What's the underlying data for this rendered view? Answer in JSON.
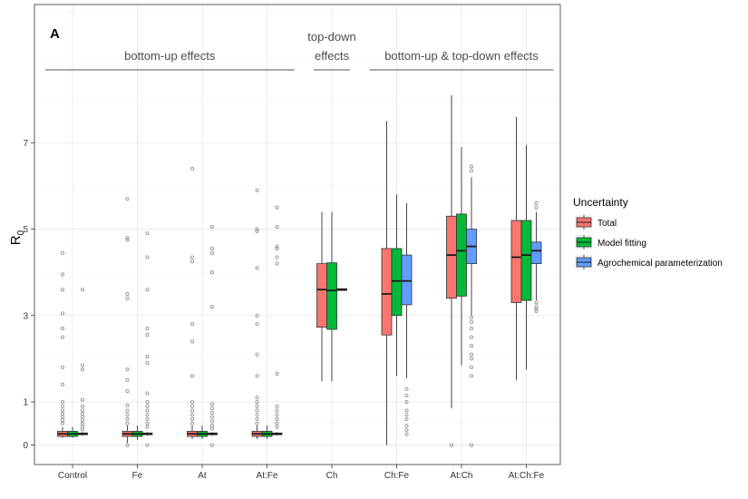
{
  "chart_data": {
    "type": "box",
    "panel_label": "A",
    "ylabel": "R",
    "ylabel_subscript": "0",
    "xlabel": "",
    "ylim": [
      -0.45,
      10.2
    ],
    "y_ticks": [
      0,
      1,
      3,
      5,
      7
    ],
    "categories": [
      "Control",
      "Fe",
      "At",
      "At:Fe",
      "Ch",
      "Ch:Fe",
      "At:Ch",
      "At:Ch:Fe"
    ],
    "grid": true,
    "legend": {
      "title": "Uncertainty",
      "position": "right",
      "entries": [
        "Total",
        "Model fitting",
        "Agrochemical parameterization"
      ]
    },
    "series_colors": {
      "Total": "#f8766d",
      "Model fitting": "#00ba38",
      "Agrochemical parameterization": "#619cff"
    },
    "annotations": [
      {
        "lines": [
          "bottom-up effects"
        ],
        "category_span": [
          "Control",
          "At:Fe"
        ]
      },
      {
        "lines": [
          "top-down",
          "effects"
        ],
        "category_span": [
          "Ch",
          "Ch"
        ]
      },
      {
        "lines": [
          "bottom-up & top-down effects"
        ],
        "category_span": [
          "Ch:Fe",
          "At:Ch:Fe"
        ]
      }
    ],
    "series": [
      {
        "name": "Total",
        "boxes": [
          {
            "category": "Control",
            "q1": 0.2,
            "median": 0.26,
            "q3": 0.32,
            "whisker_low": 0.17,
            "whisker_high": 0.42,
            "outliers": [
              4.45,
              3.95,
              3.6,
              3.05,
              2.7,
              2.5,
              1.8,
              1.4,
              1.0,
              0.9,
              0.8,
              0.72,
              0.65,
              0.58,
              0.5
            ]
          },
          {
            "category": "Fe",
            "q1": 0.2,
            "median": 0.26,
            "q3": 0.32,
            "whisker_low": 0.05,
            "whisker_high": 0.45,
            "outliers": [
              5.7,
              4.8,
              4.75,
              3.5,
              3.4,
              1.75,
              1.5,
              1.25,
              0.92,
              0.8,
              0.7,
              0.6,
              0.5,
              0.0
            ]
          },
          {
            "category": "At",
            "q1": 0.2,
            "median": 0.26,
            "q3": 0.32,
            "whisker_low": 0.14,
            "whisker_high": 0.45,
            "outliers": [
              6.4,
              4.35,
              4.25,
              2.8,
              2.4,
              1.6,
              1.0,
              0.9,
              0.8,
              0.7,
              0.6,
              0.5
            ]
          },
          {
            "category": "At:Fe",
            "q1": 0.2,
            "median": 0.26,
            "q3": 0.32,
            "whisker_low": 0.14,
            "whisker_high": 0.45,
            "outliers": [
              5.9,
              5.0,
              4.95,
              4.1,
              3.0,
              2.8,
              2.1,
              1.6,
              1.1,
              1.0,
              0.9,
              0.8,
              0.7,
              0.6,
              0.5
            ]
          },
          {
            "category": "Ch",
            "q1": 2.73,
            "median": 3.6,
            "q3": 4.2,
            "whisker_low": 1.48,
            "whisker_high": 5.4,
            "outliers": []
          },
          {
            "category": "Ch:Fe",
            "q1": 2.55,
            "median": 3.5,
            "q3": 4.55,
            "whisker_low": 0.0,
            "whisker_high": 7.5,
            "outliers": []
          },
          {
            "category": "At:Ch",
            "q1": 3.4,
            "median": 4.4,
            "q3": 5.3,
            "whisker_low": 0.85,
            "whisker_high": 8.1,
            "outliers": [
              0.0
            ]
          },
          {
            "category": "At:Ch:Fe",
            "q1": 3.3,
            "median": 4.35,
            "q3": 5.2,
            "whisker_low": 1.5,
            "whisker_high": 7.6,
            "outliers": []
          }
        ]
      },
      {
        "name": "Model fitting",
        "boxes": [
          {
            "category": "Control",
            "q1": 0.2,
            "median": 0.26,
            "q3": 0.32,
            "whisker_low": 0.17,
            "whisker_high": 0.42,
            "outliers": []
          },
          {
            "category": "Fe",
            "q1": 0.2,
            "median": 0.26,
            "q3": 0.32,
            "whisker_low": 0.12,
            "whisker_high": 0.45,
            "outliers": []
          },
          {
            "category": "At",
            "q1": 0.2,
            "median": 0.26,
            "q3": 0.32,
            "whisker_low": 0.14,
            "whisker_high": 0.45,
            "outliers": []
          },
          {
            "category": "At:Fe",
            "q1": 0.2,
            "median": 0.26,
            "q3": 0.32,
            "whisker_low": 0.14,
            "whisker_high": 0.45,
            "outliers": []
          },
          {
            "category": "Ch",
            "q1": 2.68,
            "median": 3.58,
            "q3": 4.22,
            "whisker_low": 1.48,
            "whisker_high": 5.4,
            "outliers": []
          },
          {
            "category": "Ch:Fe",
            "q1": 3.0,
            "median": 3.8,
            "q3": 4.55,
            "whisker_low": 1.6,
            "whisker_high": 5.8,
            "outliers": []
          },
          {
            "category": "At:Ch",
            "q1": 3.45,
            "median": 4.5,
            "q3": 5.35,
            "whisker_low": 1.85,
            "whisker_high": 6.9,
            "outliers": []
          },
          {
            "category": "At:Ch:Fe",
            "q1": 3.35,
            "median": 4.4,
            "q3": 5.2,
            "whisker_low": 1.75,
            "whisker_high": 6.95,
            "outliers": []
          }
        ]
      },
      {
        "name": "Agrochemical parameterization",
        "boxes": [
          {
            "category": "Control",
            "q1": 0.24,
            "median": 0.26,
            "q3": 0.28,
            "whisker_low": 0.22,
            "whisker_high": 0.3,
            "outliers": [
              3.6,
              1.85,
              1.75,
              1.05,
              0.9,
              0.8,
              0.72,
              0.65,
              0.58,
              0.5,
              0.42,
              0.36
            ]
          },
          {
            "category": "Fe",
            "q1": 0.24,
            "median": 0.26,
            "q3": 0.28,
            "whisker_low": 0.22,
            "whisker_high": 0.3,
            "outliers": [
              4.9,
              4.35,
              3.6,
              2.7,
              2.55,
              2.05,
              1.9,
              1.2,
              1.0,
              0.9,
              0.8,
              0.7,
              0.6,
              0.5,
              0.42,
              0.0
            ]
          },
          {
            "category": "At",
            "q1": 0.24,
            "median": 0.26,
            "q3": 0.28,
            "whisker_low": 0.22,
            "whisker_high": 0.3,
            "outliers": [
              5.05,
              4.55,
              4.45,
              4.0,
              3.2,
              0.95,
              0.85,
              0.75,
              0.65,
              0.55,
              0.45,
              0.38,
              0.0
            ]
          },
          {
            "category": "At:Fe",
            "q1": 0.24,
            "median": 0.26,
            "q3": 0.28,
            "whisker_low": 0.22,
            "whisker_high": 0.3,
            "outliers": [
              5.5,
              5.05,
              4.6,
              4.55,
              4.35,
              4.2,
              1.65,
              0.9,
              0.8,
              0.7,
              0.6,
              0.5,
              0.42
            ]
          },
          {
            "category": "Ch",
            "q1": 3.58,
            "median": 3.6,
            "q3": 3.62,
            "whisker_low": 3.58,
            "whisker_high": 3.62,
            "outliers": []
          },
          {
            "category": "Ch:Fe",
            "q1": 3.25,
            "median": 3.8,
            "q3": 4.4,
            "whisker_low": 1.55,
            "whisker_high": 5.6,
            "outliers": [
              1.3,
              1.15,
              1.0,
              0.8,
              0.7,
              0.6,
              0.45,
              0.35,
              0.25
            ]
          },
          {
            "category": "At:Ch",
            "q1": 4.2,
            "median": 4.6,
            "q3": 5.0,
            "whisker_low": 3.0,
            "whisker_high": 6.2,
            "outliers": [
              6.45,
              6.35,
              2.95,
              2.85,
              2.7,
              2.5,
              2.3,
              2.1,
              2.0,
              1.8,
              1.6,
              0.0
            ]
          },
          {
            "category": "At:Ch:Fe",
            "q1": 4.2,
            "median": 4.5,
            "q3": 4.7,
            "whisker_low": 3.35,
            "whisker_high": 5.4,
            "outliers": [
              5.6,
              5.5,
              3.3,
              3.2,
              3.15,
              3.1
            ]
          }
        ]
      }
    ]
  }
}
